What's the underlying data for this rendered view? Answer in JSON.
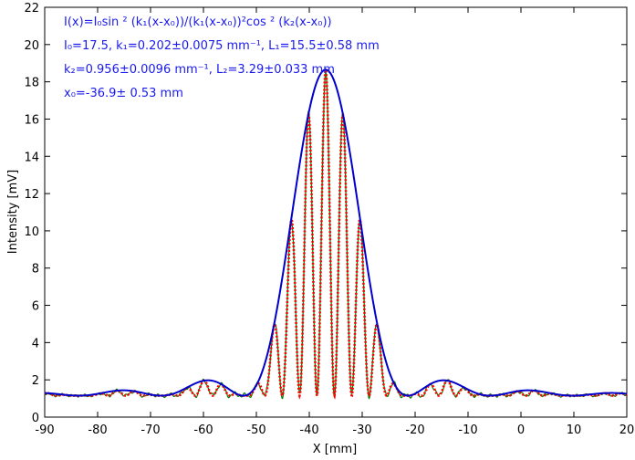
{
  "chart_data": {
    "type": "line",
    "title": "",
    "xlabel": "X [mm]",
    "ylabel": "Intensity [mV]",
    "xlim": [
      -90,
      20
    ],
    "ylim": [
      0,
      22
    ],
    "x_ticks": [
      -90,
      -80,
      -70,
      -60,
      -50,
      -40,
      -30,
      -20,
      -10,
      0,
      10,
      20
    ],
    "y_ticks": [
      0,
      2,
      4,
      6,
      8,
      10,
      12,
      14,
      16,
      18,
      20,
      22
    ],
    "grid": false,
    "annotations": [
      "I(x)=I₀sin ² (k₁(x-x₀))/(k₁(x-x₀))²cos ² (k₂(x-x₀))",
      "I₀=17.5,  k₁=0.202±0.0075 mm⁻¹,   L₁=15.5±0.58 mm",
      "k₂=0.956±0.0096 mm⁻¹,   L₂=3.29±0.033 mm",
      "x₀=-36.9±   0.53 mm"
    ],
    "fit_params": {
      "I0": 17.5,
      "k1": 0.202,
      "k2": 0.956,
      "x0": -36.9,
      "background": 1.15
    },
    "series": [
      {
        "color": "#008000",
        "style": "solid",
        "x_range": [
          -90,
          20
        ]
      },
      {
        "color": "#ff0000",
        "style": "dotted",
        "x_range": [
          -90,
          20
        ]
      },
      {
        "color": "#0000cc",
        "style": "solid",
        "x_range": [
          -90,
          20
        ]
      }
    ]
  }
}
